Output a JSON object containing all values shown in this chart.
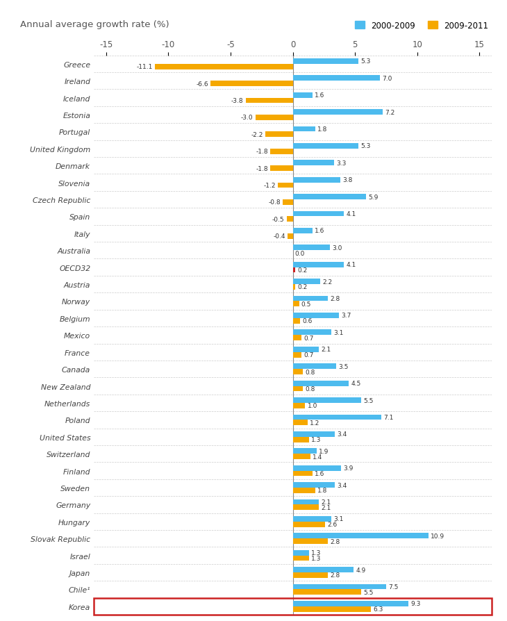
{
  "title": "Annual average growth rate (%)",
  "legend": [
    "2000-2009",
    "2009-2011"
  ],
  "bar_color_2000": "#4DBBEE",
  "bar_color_2009": "#F5A800",
  "bar_color_oecd_2009": "#CC2222",
  "countries": [
    "Greece",
    "Ireland",
    "Iceland",
    "Estonia",
    "Portugal",
    "United Kingdom",
    "Denmark",
    "Slovenia",
    "Czech Republic",
    "Spain",
    "Italy",
    "Australia",
    "OECD32",
    "Austria",
    "Norway",
    "Belgium",
    "Mexico",
    "France",
    "Canada",
    "New Zealand",
    "Netherlands",
    "Poland",
    "United States",
    "Switzerland",
    "Finland",
    "Sweden",
    "Germany",
    "Hungary",
    "Slovak Republic",
    "Israel",
    "Japan",
    "Chile¹",
    "Korea"
  ],
  "values_2000": [
    -11.1,
    -6.6,
    -3.8,
    -3.0,
    -2.2,
    -1.8,
    -1.8,
    -1.2,
    -0.8,
    -0.5,
    -0.4,
    0.0,
    0.2,
    0.2,
    0.5,
    0.6,
    0.7,
    0.7,
    0.8,
    0.8,
    1.0,
    1.2,
    1.3,
    1.4,
    1.6,
    1.8,
    2.1,
    2.6,
    2.8,
    1.3,
    2.8,
    5.5,
    6.3
  ],
  "values_2009": [
    5.3,
    7.0,
    1.6,
    7.2,
    1.8,
    5.3,
    3.3,
    3.8,
    5.9,
    4.1,
    1.6,
    3.0,
    4.1,
    2.2,
    2.8,
    3.7,
    3.1,
    2.1,
    3.5,
    4.5,
    5.5,
    7.1,
    3.4,
    1.9,
    3.9,
    3.4,
    2.1,
    3.1,
    10.9,
    1.3,
    4.9,
    7.5,
    9.3
  ],
  "xlim": [
    -16,
    16
  ],
  "xticks": [
    -15,
    -10,
    -5,
    0,
    5,
    10,
    15
  ],
  "bar_height": 0.32,
  "korea_box_color": "#CC2222",
  "background_color": "#FFFFFF",
  "grid_color": "#CCCCCC",
  "label_fontsize": 7.8,
  "tick_fontsize": 8.5,
  "title_fontsize": 9.5,
  "value_fontsize": 6.5
}
